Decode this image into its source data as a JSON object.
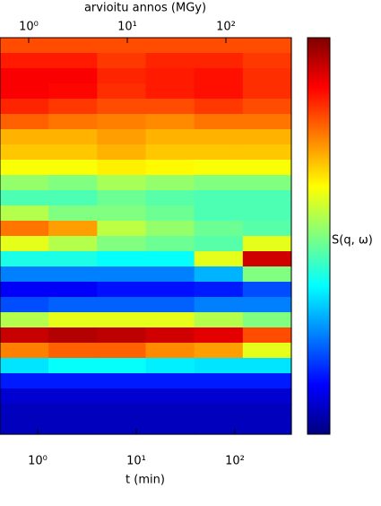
{
  "chart_data": {
    "type": "heatmap",
    "xlabel": "t (min)",
    "x2label": "arvioitu annos (MGy)",
    "colorbar_label": "S(q, ω)",
    "xscale": "log",
    "xlim": [
      0.415,
      374
    ],
    "xticks": [
      {
        "value": 1,
        "label": "10⁰"
      },
      {
        "value": 10,
        "label": "10¹"
      },
      {
        "value": 100,
        "label": "10²"
      }
    ],
    "x2lim": [
      0.512,
      461
    ],
    "x2ticks": [
      {
        "value": 1,
        "label": "10⁰"
      },
      {
        "value": 10,
        "label": "10¹"
      },
      {
        "value": 100,
        "label": "10²"
      }
    ],
    "colormap": "jet",
    "zlim": [
      0,
      1
    ],
    "z": [
      [
        0.8,
        0.8,
        0.8,
        0.8,
        0.8,
        0.8
      ],
      [
        0.85,
        0.85,
        0.82,
        0.84,
        0.84,
        0.82
      ],
      [
        0.88,
        0.88,
        0.84,
        0.85,
        0.86,
        0.83
      ],
      [
        0.88,
        0.87,
        0.83,
        0.85,
        0.86,
        0.83
      ],
      [
        0.84,
        0.82,
        0.8,
        0.8,
        0.82,
        0.8
      ],
      [
        0.78,
        0.76,
        0.75,
        0.74,
        0.76,
        0.76
      ],
      [
        0.7,
        0.7,
        0.72,
        0.7,
        0.7,
        0.7
      ],
      [
        0.68,
        0.68,
        0.7,
        0.68,
        0.68,
        0.68
      ],
      [
        0.62,
        0.62,
        0.64,
        0.63,
        0.62,
        0.62
      ],
      [
        0.52,
        0.5,
        0.54,
        0.52,
        0.5,
        0.5
      ],
      [
        0.45,
        0.45,
        0.48,
        0.46,
        0.45,
        0.45
      ],
      [
        0.55,
        0.5,
        0.5,
        0.48,
        0.45,
        0.45
      ],
      [
        0.76,
        0.72,
        0.56,
        0.52,
        0.48,
        0.46
      ],
      [
        0.6,
        0.55,
        0.5,
        0.48,
        0.46,
        0.6
      ],
      [
        0.4,
        0.4,
        0.38,
        0.38,
        0.6,
        0.92
      ],
      [
        0.25,
        0.25,
        0.25,
        0.25,
        0.3,
        0.5
      ],
      [
        0.12,
        0.12,
        0.14,
        0.14,
        0.15,
        0.2
      ],
      [
        0.2,
        0.22,
        0.22,
        0.22,
        0.25,
        0.25
      ],
      [
        0.55,
        0.6,
        0.6,
        0.6,
        0.55,
        0.5
      ],
      [
        0.93,
        0.95,
        0.94,
        0.92,
        0.9,
        0.8
      ],
      [
        0.75,
        0.78,
        0.78,
        0.74,
        0.72,
        0.6
      ],
      [
        0.35,
        0.38,
        0.38,
        0.36,
        0.35,
        0.35
      ],
      [
        0.15,
        0.15,
        0.15,
        0.15,
        0.15,
        0.15
      ],
      [
        0.08,
        0.08,
        0.08,
        0.08,
        0.08,
        0.08
      ],
      [
        0.06,
        0.06,
        0.06,
        0.06,
        0.06,
        0.06
      ],
      [
        0.06,
        0.06,
        0.06,
        0.06,
        0.06,
        0.06
      ]
    ]
  }
}
